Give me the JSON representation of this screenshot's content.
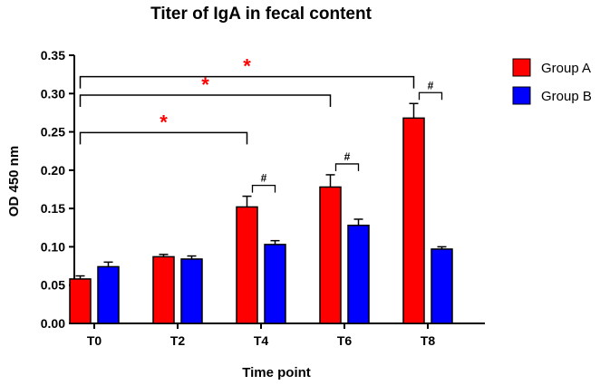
{
  "chart_data": {
    "type": "bar",
    "title": "Titer of IgA in fecal content",
    "xlabel": "Time point",
    "ylabel": "OD 450 nm",
    "ylim": [
      0,
      0.35
    ],
    "yticks": [
      "0.00",
      "0.05",
      "0.10",
      "0.15",
      "0.20",
      "0.25",
      "0.30",
      "0.35"
    ],
    "categories": [
      "T0",
      "T2",
      "T4",
      "T6",
      "T8"
    ],
    "series": [
      {
        "name": "Group A",
        "color": "#ff0000",
        "values": [
          0.058,
          0.087,
          0.152,
          0.178,
          0.268
        ],
        "errors": [
          0.004,
          0.003,
          0.014,
          0.016,
          0.019
        ]
      },
      {
        "name": "Group B",
        "color": "#0000ff",
        "values": [
          0.074,
          0.084,
          0.103,
          0.128,
          0.097
        ],
        "errors": [
          0.006,
          0.004,
          0.005,
          0.008,
          0.003
        ]
      }
    ],
    "legend_position": "top-right",
    "grid": false,
    "significance": [
      {
        "symbol": "*",
        "color": "#ff0000",
        "from": "T0",
        "to": "T8",
        "series": "Group A"
      },
      {
        "symbol": "*",
        "color": "#ff0000",
        "from": "T0",
        "to": "T6",
        "series": "Group A"
      },
      {
        "symbol": "*",
        "color": "#ff0000",
        "from": "T0",
        "to": "T4",
        "series": "Group A"
      },
      {
        "symbol": "#",
        "color": "#000000",
        "at": "T4"
      },
      {
        "symbol": "#",
        "color": "#000000",
        "at": "T6"
      },
      {
        "symbol": "#",
        "color": "#000000",
        "at": "T8"
      }
    ]
  }
}
